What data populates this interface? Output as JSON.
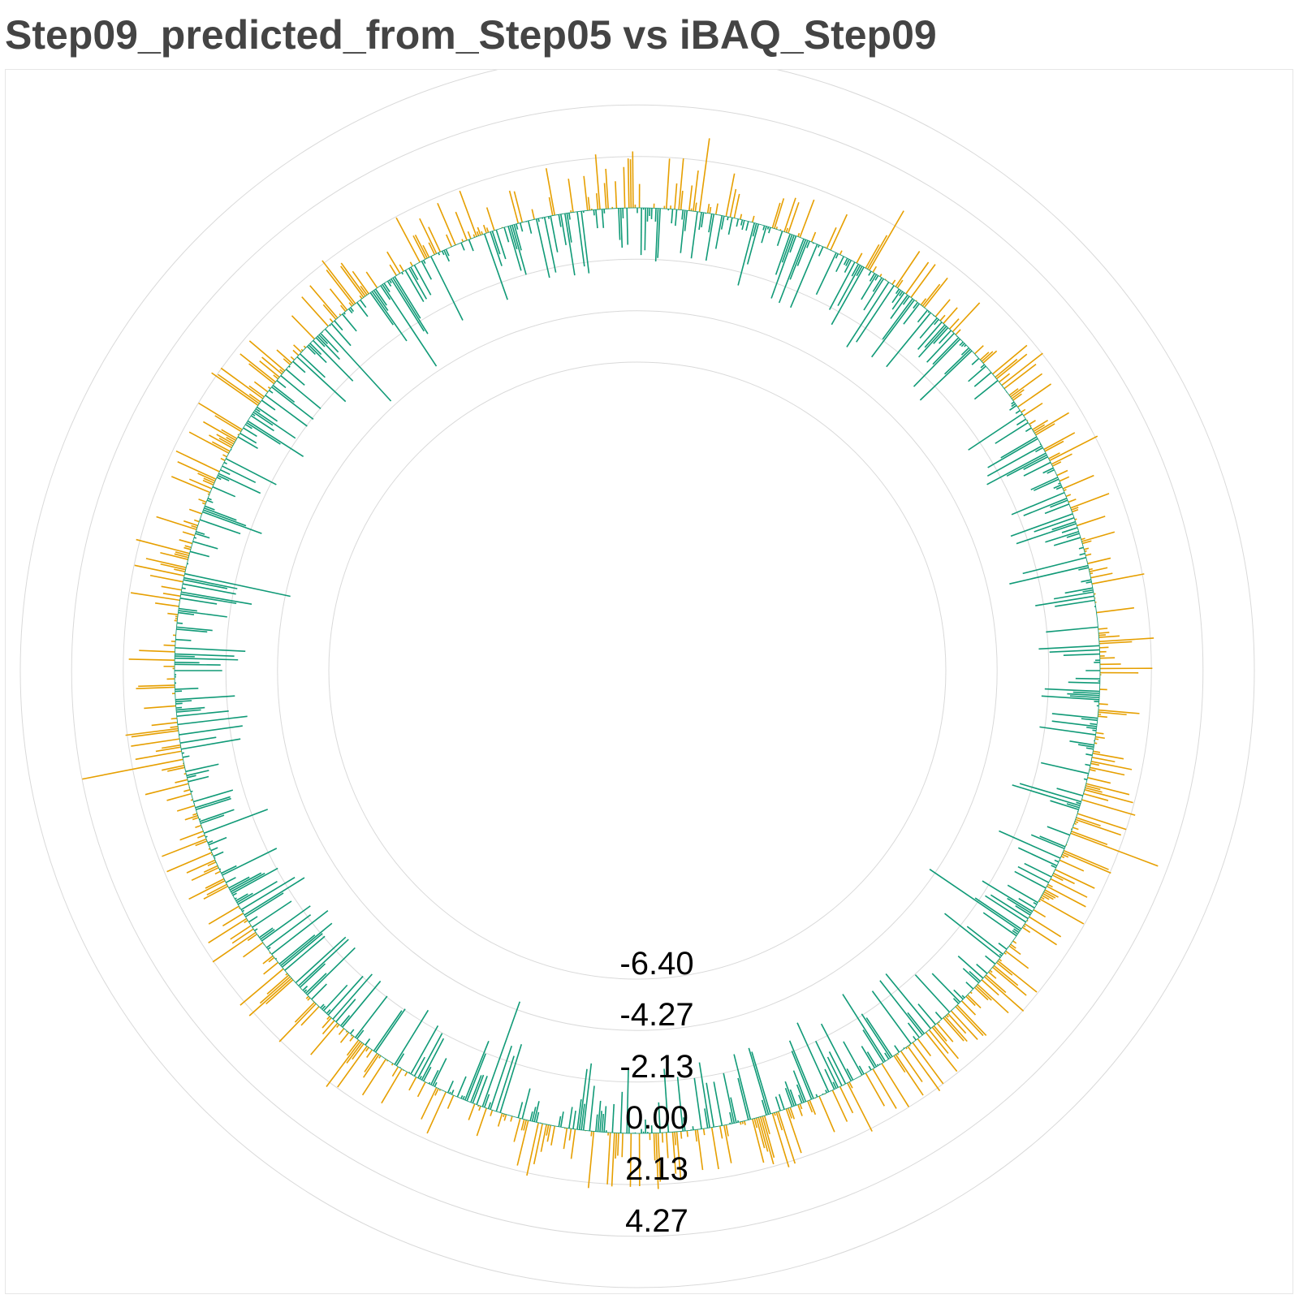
{
  "title": "Step09_predicted_from_Step05 vs iBAQ_Step09",
  "colors": {
    "positive": "#E69F00",
    "negative": "#109A77",
    "grid": "#d9d9d9",
    "text": "#444444"
  },
  "chart_data": {
    "type": "bar",
    "subtype": "radial",
    "title": "Step09_predicted_from_Step05 vs iBAQ_Step09",
    "grid": true,
    "legend": "none",
    "radial_ticks": [
      "-6.40",
      "-4.27",
      "-2.13",
      "0.00",
      "2.13",
      "4.27"
    ],
    "rlim": [
      -6.4,
      4.27
    ],
    "baseline": 0,
    "n_bars": 1400,
    "extremes": {
      "max_positive": 4.3,
      "min_negative": -5.4
    }
  }
}
